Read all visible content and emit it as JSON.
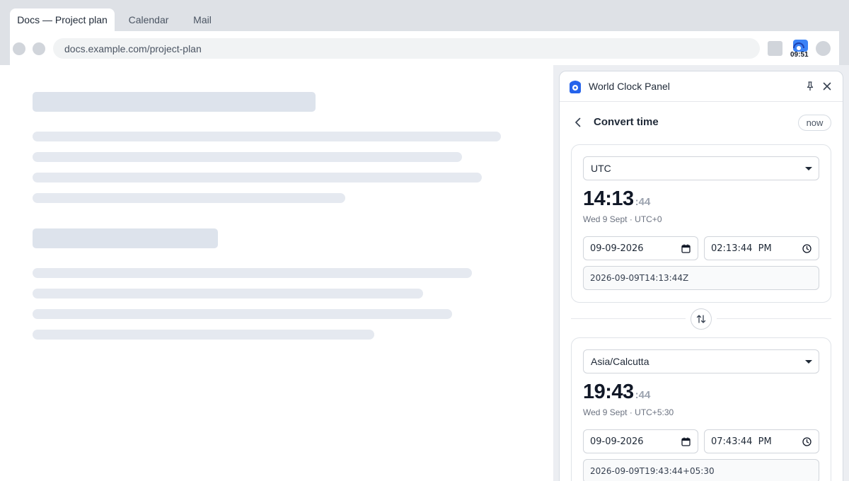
{
  "browser": {
    "tabs": [
      {
        "label": "Docs — Project plan",
        "active": true
      },
      {
        "label": "Calendar",
        "active": false
      },
      {
        "label": "Mail",
        "active": false
      }
    ],
    "url": "docs.example.com/project-plan",
    "extension_badge": "09:51",
    "extension_icon": "world-clock-icon"
  },
  "panel": {
    "title": "World Clock Panel",
    "pin_icon": "pin-icon",
    "close_icon": "close-icon",
    "subheader": {
      "back_icon": "chevron-left-icon",
      "title": "Convert time",
      "now_label": "now"
    },
    "swap_icon": "swap-vertical-icon",
    "zones": [
      {
        "zone": "UTC",
        "time_hm": "14:13",
        "time_sec": ":44",
        "meta": "Wed 9 Sept · UTC+0",
        "date_value": "09-09-2026",
        "time_value": "02:13:44  PM",
        "iso": "2026-09-09T14:13:44Z"
      },
      {
        "zone": "Asia/Calcutta",
        "time_hm": "19:43",
        "time_sec": ":44",
        "meta": "Wed 9 Sept · UTC+5:30",
        "date_value": "09-09-2026",
        "time_value": "07:43:44  PM",
        "iso": "2026-09-09T19:43:44+05:30"
      }
    ]
  },
  "colors": {
    "chrome": "#dee1e6",
    "accent": "#2563eb",
    "skeleton": "#e5e9f0"
  }
}
